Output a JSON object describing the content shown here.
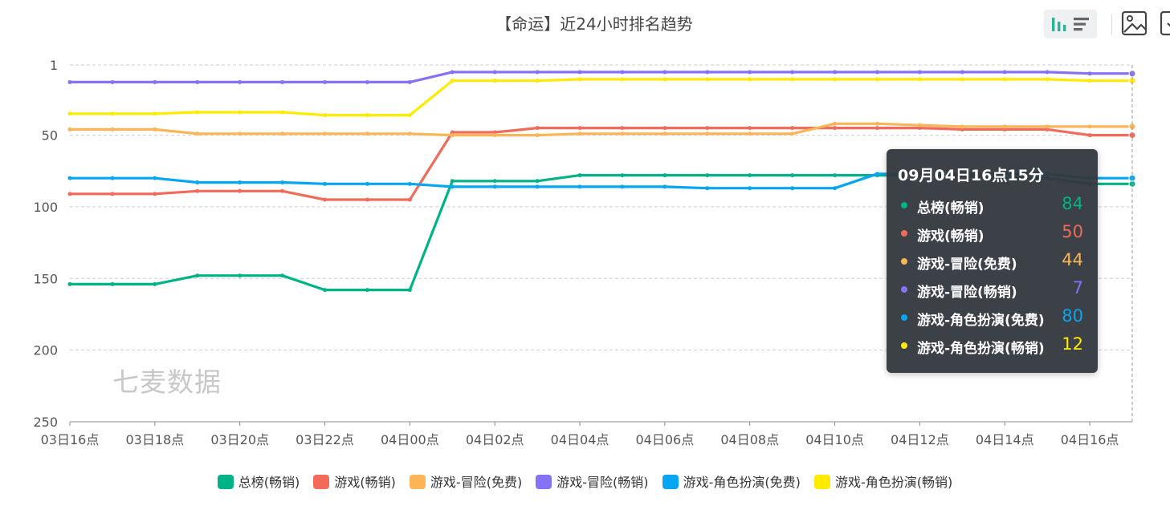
{
  "chart_data": {
    "type": "line",
    "title": "【命运】近24小时排名趋势",
    "categories": [
      "03日16点",
      "03日17点",
      "03日18点",
      "03日19点",
      "03日20点",
      "03日21点",
      "03日22点",
      "03日23点",
      "04日00点",
      "04日01点",
      "04日02点",
      "04日03点",
      "04日04点",
      "04日05点",
      "04日06点",
      "04日07点",
      "04日08点",
      "04日09点",
      "04日10点",
      "04日11点",
      "04日12点",
      "04日13点",
      "04日14点",
      "04日15点",
      "04日16点",
      "04日16点15分"
    ],
    "x_tick_labels": [
      "03日16点",
      "03日18点",
      "03日20点",
      "03日22点",
      "04日00点",
      "04日02点",
      "04日04点",
      "04日06点",
      "04日08点",
      "04日10点",
      "04日12点",
      "04日14点",
      "04日16点"
    ],
    "y_ticks": [
      1,
      50,
      100,
      150,
      200,
      250
    ],
    "ylim": [
      1,
      250
    ],
    "y_inverse": true,
    "series": [
      {
        "name": "总榜(畅销)",
        "color": "#00b386",
        "values": [
          154,
          154,
          154,
          148,
          148,
          148,
          158,
          158,
          158,
          82,
          82,
          82,
          78,
          78,
          78,
          78,
          78,
          78,
          78,
          78,
          78,
          78,
          80,
          80,
          84,
          84
        ]
      },
      {
        "name": "游戏(畅销)",
        "color": "#f26a5a",
        "values": [
          91,
          91,
          91,
          89,
          89,
          89,
          95,
          95,
          95,
          48,
          48,
          45,
          45,
          45,
          45,
          45,
          45,
          45,
          45,
          45,
          45,
          46,
          46,
          46,
          50,
          50
        ]
      },
      {
        "name": "游戏-冒险(免费)",
        "color": "#fbb456",
        "values": [
          46,
          46,
          46,
          49,
          49,
          49,
          49,
          49,
          49,
          50,
          50,
          50,
          49,
          49,
          49,
          49,
          49,
          49,
          42,
          42,
          43,
          44,
          44,
          44,
          44,
          44
        ]
      },
      {
        "name": "游戏-冒险(畅销)",
        "color": "#8572f4",
        "values": [
          13,
          13,
          13,
          13,
          13,
          13,
          13,
          13,
          13,
          6,
          6,
          6,
          6,
          6,
          6,
          6,
          6,
          6,
          6,
          6,
          6,
          6,
          6,
          6,
          7,
          7
        ]
      },
      {
        "name": "游戏-角色扮演(免费)",
        "color": "#07a6f3",
        "values": [
          80,
          80,
          80,
          83,
          83,
          83,
          84,
          84,
          84,
          86,
          86,
          86,
          86,
          86,
          86,
          87,
          87,
          87,
          87,
          77,
          77,
          77,
          77,
          77,
          80,
          80
        ]
      },
      {
        "name": "游戏-角色扮演(畅销)",
        "color": "#ffeb00",
        "values": [
          35,
          35,
          35,
          34,
          34,
          34,
          36,
          36,
          36,
          12,
          12,
          12,
          11,
          11,
          11,
          11,
          11,
          11,
          11,
          11,
          11,
          11,
          11,
          11,
          12,
          12
        ]
      }
    ]
  },
  "tooltip": {
    "title": "09月04日16点15分",
    "rows": [
      {
        "label": "总榜(畅销)",
        "value": "84",
        "color": "#00b386"
      },
      {
        "label": "游戏(畅销)",
        "value": "50",
        "color": "#f26a5a"
      },
      {
        "label": "游戏-冒险(免费)",
        "value": "44",
        "color": "#fbb456"
      },
      {
        "label": "游戏-冒险(畅销)",
        "value": "7",
        "color": "#8572f4"
      },
      {
        "label": "游戏-角色扮演(免费)",
        "value": "80",
        "color": "#07a6f3"
      },
      {
        "label": "游戏-角色扮演(畅销)",
        "value": "12",
        "color": "#ffeb00"
      }
    ]
  },
  "watermark": "七麦数据",
  "toolbar": {
    "icons": [
      "bar-chart-icon",
      "list-icon",
      "image-icon",
      "download-icon"
    ],
    "accent_color": "#2bb39a"
  }
}
